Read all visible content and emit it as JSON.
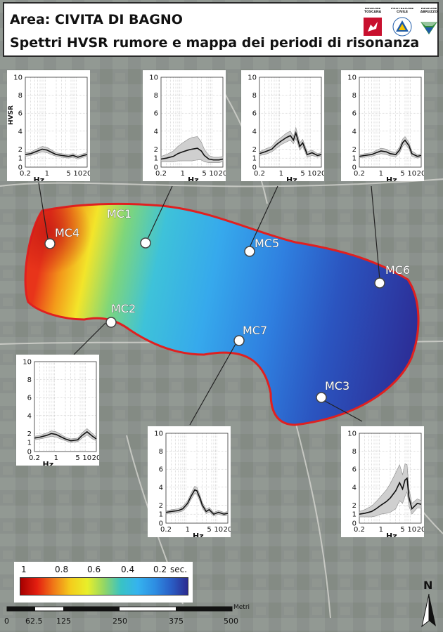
{
  "header": {
    "title": "Area: CIVITA DI BAGNO",
    "subtitle": "Spettri HVSR rumore e mappa dei periodi di risonanza",
    "logos": [
      {
        "text": "REGIONE TOSCANA",
        "icon": "toscana-pegasus-icon",
        "color": "#c8102e"
      },
      {
        "text": "PROTEZIONE CIVILE",
        "icon": "protezione-civile-icon",
        "color": "#1e5ba8"
      },
      {
        "text": "REGIONE ABRUZZO",
        "icon": "abruzzo-icon",
        "color": "#2e8b3a"
      }
    ]
  },
  "map": {
    "zone_outline_color": "#e02020",
    "sites": [
      {
        "id": "MC1",
        "label": "MC1"
      },
      {
        "id": "MC2",
        "label": "MC2"
      },
      {
        "id": "MC3",
        "label": "MC3"
      },
      {
        "id": "MC4",
        "label": "MC4"
      },
      {
        "id": "MC5",
        "label": "MC5"
      },
      {
        "id": "MC6",
        "label": "MC6"
      },
      {
        "id": "MC7",
        "label": "MC7"
      }
    ]
  },
  "chart_data": [
    {
      "type": "line",
      "site": "MC4",
      "ylabel": "HVSR",
      "xlabel": "Hz",
      "xscale": "log",
      "xlim": [
        0.2,
        20
      ],
      "ylim": [
        0,
        10
      ],
      "xticks": [
        "0.2",
        "1",
        "5",
        "10",
        "20"
      ],
      "yticks": [
        "0",
        "1",
        "2",
        "4",
        "6",
        "8",
        "10"
      ],
      "x": [
        0.2,
        0.3,
        0.5,
        0.7,
        1,
        1.5,
        2,
        3,
        5,
        7,
        10,
        15,
        20
      ],
      "series": [
        {
          "values": [
            1.4,
            1.5,
            1.8,
            2.0,
            1.9,
            1.6,
            1.4,
            1.3,
            1.2,
            1.3,
            1.1,
            1.3,
            1.4
          ]
        }
      ],
      "band": [
        0.2,
        0.2,
        0.25,
        0.3,
        0.3,
        0.25,
        0.2,
        0.2,
        0.2,
        0.2,
        0.2,
        0.2,
        0.2
      ]
    },
    {
      "type": "line",
      "site": "MC1",
      "xlabel": "Hz",
      "xscale": "log",
      "xlim": [
        0.2,
        20
      ],
      "ylim": [
        0,
        10
      ],
      "xticks": [
        "0.2",
        "1",
        "Hz",
        "5",
        "10",
        "20"
      ],
      "yticks": [
        "0",
        "1",
        "2",
        "4",
        "6",
        "8",
        "10"
      ],
      "x": [
        0.2,
        0.3,
        0.5,
        0.7,
        1,
        1.5,
        2,
        3,
        4,
        5,
        7,
        10,
        15,
        20
      ],
      "series": [
        {
          "values": [
            0.9,
            1.0,
            1.2,
            1.5,
            1.7,
            1.9,
            2.0,
            2.1,
            1.8,
            1.3,
            0.9,
            0.8,
            0.8,
            0.9
          ]
        }
      ],
      "band": [
        0.3,
        0.4,
        0.6,
        0.8,
        1.0,
        1.2,
        1.3,
        1.3,
        1.0,
        0.7,
        0.4,
        0.3,
        0.3,
        0.3
      ]
    },
    {
      "type": "line",
      "site": "MC5",
      "xlabel": "Hz",
      "xscale": "log",
      "xlim": [
        0.2,
        20
      ],
      "ylim": [
        0,
        10
      ],
      "xticks": [
        "0.2",
        "1",
        "Hz",
        "5",
        "10",
        "20"
      ],
      "yticks": [
        "0",
        "1",
        "2",
        "4",
        "6",
        "8",
        "10"
      ],
      "x": [
        0.2,
        0.3,
        0.5,
        0.7,
        1,
        1.5,
        2,
        2.5,
        3,
        4,
        5,
        7,
        10,
        15,
        20
      ],
      "series": [
        {
          "values": [
            1.5,
            1.7,
            2.0,
            2.5,
            2.9,
            3.3,
            3.5,
            3.0,
            3.8,
            2.3,
            2.7,
            1.4,
            1.6,
            1.3,
            1.4
          ]
        }
      ],
      "band": [
        0.2,
        0.3,
        0.3,
        0.4,
        0.4,
        0.5,
        0.5,
        0.4,
        0.6,
        0.4,
        0.4,
        0.3,
        0.3,
        0.2,
        0.2
      ]
    },
    {
      "type": "line",
      "site": "MC6",
      "xlabel": "Hz",
      "xscale": "log",
      "xlim": [
        0.2,
        20
      ],
      "ylim": [
        0,
        10
      ],
      "xticks": [
        "0.2",
        "1",
        "Hz",
        "5",
        "10",
        "20"
      ],
      "yticks": [
        "0",
        "1",
        "2",
        "4",
        "6",
        "8",
        "10"
      ],
      "x": [
        0.2,
        0.3,
        0.5,
        0.7,
        1,
        1.5,
        2,
        3,
        4,
        5,
        6,
        8,
        10,
        15,
        20
      ],
      "series": [
        {
          "values": [
            1.2,
            1.3,
            1.4,
            1.6,
            1.8,
            1.7,
            1.5,
            1.4,
            1.9,
            2.7,
            3.0,
            2.4,
            1.5,
            1.2,
            1.3
          ]
        }
      ],
      "band": [
        0.15,
        0.2,
        0.2,
        0.25,
        0.3,
        0.3,
        0.25,
        0.25,
        0.35,
        0.4,
        0.4,
        0.35,
        0.3,
        0.2,
        0.2
      ]
    },
    {
      "type": "line",
      "site": "MC2",
      "xlabel": "Hz",
      "xscale": "log",
      "xlim": [
        0.2,
        20
      ],
      "ylim": [
        0,
        10
      ],
      "xticks": [
        "0.2",
        "1",
        "5",
        "10",
        "20"
      ],
      "yticks": [
        "0",
        "1",
        "2",
        "4",
        "6",
        "8",
        "10"
      ],
      "x": [
        0.2,
        0.3,
        0.5,
        0.7,
        1,
        1.5,
        2,
        3,
        5,
        7,
        10,
        15,
        20
      ],
      "series": [
        {
          "values": [
            1.5,
            1.6,
            1.8,
            2.0,
            1.9,
            1.6,
            1.4,
            1.2,
            1.3,
            1.8,
            2.2,
            1.7,
            1.4
          ]
        }
      ],
      "band": [
        0.2,
        0.2,
        0.25,
        0.3,
        0.3,
        0.25,
        0.2,
        0.2,
        0.2,
        0.3,
        0.35,
        0.3,
        0.2
      ]
    },
    {
      "type": "line",
      "site": "MC7",
      "xlabel": "Hz",
      "xscale": "log",
      "xlim": [
        0.2,
        20
      ],
      "ylim": [
        0,
        10
      ],
      "xticks": [
        "0.2",
        "1",
        "Hz",
        "5",
        "10",
        "20"
      ],
      "yticks": [
        "0",
        "1",
        "2",
        "4",
        "6",
        "8",
        "10"
      ],
      "x": [
        0.2,
        0.3,
        0.5,
        0.7,
        1,
        1.3,
        1.7,
        2,
        2.5,
        3,
        4,
        5,
        7,
        10,
        15,
        20
      ],
      "series": [
        {
          "values": [
            1.2,
            1.3,
            1.4,
            1.6,
            2.2,
            3.0,
            3.7,
            3.6,
            2.8,
            2.0,
            1.3,
            1.5,
            1.0,
            1.2,
            1.0,
            1.1
          ]
        }
      ],
      "band": [
        0.15,
        0.2,
        0.2,
        0.25,
        0.3,
        0.35,
        0.4,
        0.4,
        0.35,
        0.3,
        0.25,
        0.25,
        0.2,
        0.2,
        0.2,
        0.2
      ]
    },
    {
      "type": "line",
      "site": "MC3",
      "xlabel": "Hz",
      "xscale": "log",
      "xlim": [
        0.2,
        20
      ],
      "ylim": [
        0,
        10
      ],
      "xticks": [
        "0.2",
        "1",
        "Hz",
        "5",
        "10",
        "20"
      ],
      "yticks": [
        "0",
        "1",
        "2",
        "4",
        "6",
        "8",
        "10"
      ],
      "x": [
        0.2,
        0.3,
        0.5,
        0.7,
        1,
        1.5,
        2,
        3,
        4,
        5,
        6,
        7,
        8,
        10,
        15,
        20
      ],
      "series": [
        {
          "values": [
            1.0,
            1.1,
            1.3,
            1.6,
            2.0,
            2.4,
            2.8,
            3.6,
            4.5,
            3.8,
            4.8,
            5.0,
            2.9,
            1.6,
            2.2,
            2.1
          ]
        }
      ],
      "band": [
        0.3,
        0.4,
        0.6,
        0.8,
        1.0,
        1.3,
        1.6,
        2.0,
        2.0,
        1.6,
        1.8,
        1.5,
        1.0,
        0.6,
        0.5,
        0.4
      ]
    }
  ],
  "legend": {
    "labels": [
      "1",
      "0.8",
      "0.6",
      "0.4",
      "0.2",
      "sec."
    ],
    "colors": [
      "#a50000",
      "#e41f10",
      "#f07a18",
      "#f4cd1c",
      "#e8ef2a",
      "#93d665",
      "#39c3c4",
      "#35b3ee",
      "#2e8fe3",
      "#2a5fc6",
      "#2c2b90"
    ]
  },
  "scalebar": {
    "labels": [
      "0",
      "62.5",
      "125",
      "250",
      "375",
      "500"
    ],
    "unit": "Metri"
  },
  "north_arrow": {
    "label": "N",
    "icon": "north-arrow-icon"
  }
}
